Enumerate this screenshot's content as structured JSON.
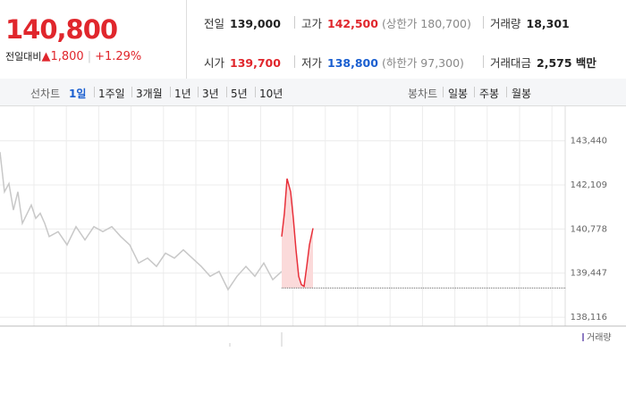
{
  "quote": {
    "price": "140,800",
    "change_label": "전일대비",
    "change": "▲1,800",
    "change_rate": "+1.29%"
  },
  "stats": [
    {
      "label": "전일",
      "value": "139,000",
      "color": "#222222"
    },
    {
      "label": "고가",
      "value": "142,500",
      "note": "(상한가 180,700)",
      "color": "#e0262c"
    },
    {
      "label": "거래량",
      "value": "18,301",
      "color": "#222222"
    },
    {
      "label": "시가",
      "value": "139,700",
      "color": "#e0262c"
    },
    {
      "label": "저가",
      "value": "138,800",
      "note": "(하한가 97,300)",
      "color": "#1a5fd0"
    },
    {
      "label": "거래대금",
      "value": "2,575 백만",
      "color": "#222222"
    }
  ],
  "tabs": {
    "line_label": "선차트",
    "line": [
      "1일",
      "1주일",
      "3개월",
      "1년",
      "3년",
      "5년",
      "10년"
    ],
    "candle_label": "봉차트",
    "candle": [
      "일봉",
      "주봉",
      "월봉"
    ]
  },
  "volume_label": "거래량",
  "chart_data": {
    "type": "line",
    "series": [
      {
        "color": "#c8c8c8",
        "x": [
          0,
          5,
          10,
          15,
          20,
          25,
          35,
          40,
          45,
          50,
          55,
          65,
          75,
          85,
          95,
          105,
          115,
          125,
          135,
          145,
          155,
          165,
          175,
          185,
          195,
          205,
          215,
          225,
          235,
          245,
          255,
          265,
          275,
          285,
          295,
          305,
          315
        ],
        "values": [
          143100,
          141900,
          142150,
          141350,
          141900,
          140950,
          141500,
          141100,
          141250,
          140950,
          140550,
          140700,
          140300,
          140850,
          140450,
          140850,
          140700,
          140850,
          140550,
          140300,
          139750,
          139900,
          139650,
          140050,
          139900,
          140150,
          139900,
          139650,
          139350,
          139500,
          138950,
          139350,
          139650,
          139350,
          139750,
          139250,
          139500
        ]
      },
      {
        "color": "#e8303a",
        "fill": "#fbdada",
        "x": [
          315,
          318,
          321,
          325,
          328,
          331,
          334,
          337,
          340,
          343,
          346,
          350
        ],
        "values": [
          140550,
          141250,
          142300,
          141900,
          141100,
          140150,
          139350,
          139100,
          139050,
          139650,
          140300,
          140800
        ]
      }
    ],
    "baseline": 139000,
    "xlim": [
      0,
      632
    ],
    "ylim": [
      137850,
      144480
    ],
    "yticks": [
      {
        "value": 143440,
        "label": "143,440"
      },
      {
        "value": 142109,
        "label": "142,109"
      },
      {
        "value": 140778,
        "label": "140,778"
      },
      {
        "value": 139447,
        "label": "139,447"
      },
      {
        "value": 138116,
        "label": "138,116"
      }
    ],
    "grid": true
  }
}
